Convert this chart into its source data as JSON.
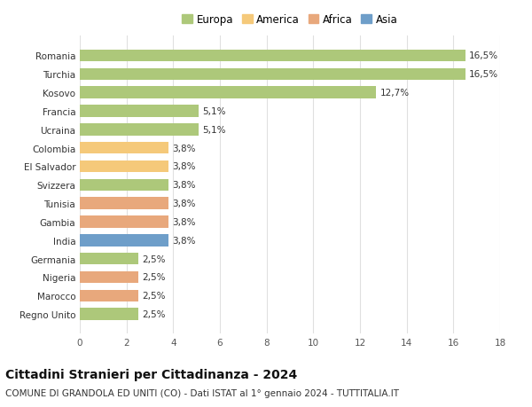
{
  "categories": [
    "Regno Unito",
    "Marocco",
    "Nigeria",
    "Germania",
    "India",
    "Gambia",
    "Tunisia",
    "Svizzera",
    "El Salvador",
    "Colombia",
    "Ucraina",
    "Francia",
    "Kosovo",
    "Turchia",
    "Romania"
  ],
  "values": [
    2.5,
    2.5,
    2.5,
    2.5,
    3.8,
    3.8,
    3.8,
    3.8,
    3.8,
    3.8,
    5.1,
    5.1,
    12.7,
    16.5,
    16.5
  ],
  "colors": [
    "#adc87a",
    "#e8a87c",
    "#e8a87c",
    "#adc87a",
    "#6e9ec9",
    "#e8a87c",
    "#e8a87c",
    "#adc87a",
    "#f5c97a",
    "#f5c97a",
    "#adc87a",
    "#adc87a",
    "#adc87a",
    "#adc87a",
    "#adc87a"
  ],
  "labels": [
    "2,5%",
    "2,5%",
    "2,5%",
    "2,5%",
    "3,8%",
    "3,8%",
    "3,8%",
    "3,8%",
    "3,8%",
    "3,8%",
    "5,1%",
    "5,1%",
    "12,7%",
    "16,5%",
    "16,5%"
  ],
  "legend_labels": [
    "Europa",
    "America",
    "Africa",
    "Asia"
  ],
  "legend_colors": [
    "#adc87a",
    "#f5c97a",
    "#e8a87c",
    "#6e9ec9"
  ],
  "title": "Cittadini Stranieri per Cittadinanza - 2024",
  "subtitle": "COMUNE DI GRANDOLA ED UNITI (CO) - Dati ISTAT al 1° gennaio 2024 - TUTTITALIA.IT",
  "xlim": [
    0,
    18
  ],
  "xticks": [
    0,
    2,
    4,
    6,
    8,
    10,
    12,
    14,
    16,
    18
  ],
  "background_color": "#ffffff",
  "grid_color": "#e0e0e0",
  "bar_height": 0.65,
  "title_fontsize": 10,
  "subtitle_fontsize": 7.5,
  "label_fontsize": 7.5,
  "tick_fontsize": 7.5,
  "legend_fontsize": 8.5
}
